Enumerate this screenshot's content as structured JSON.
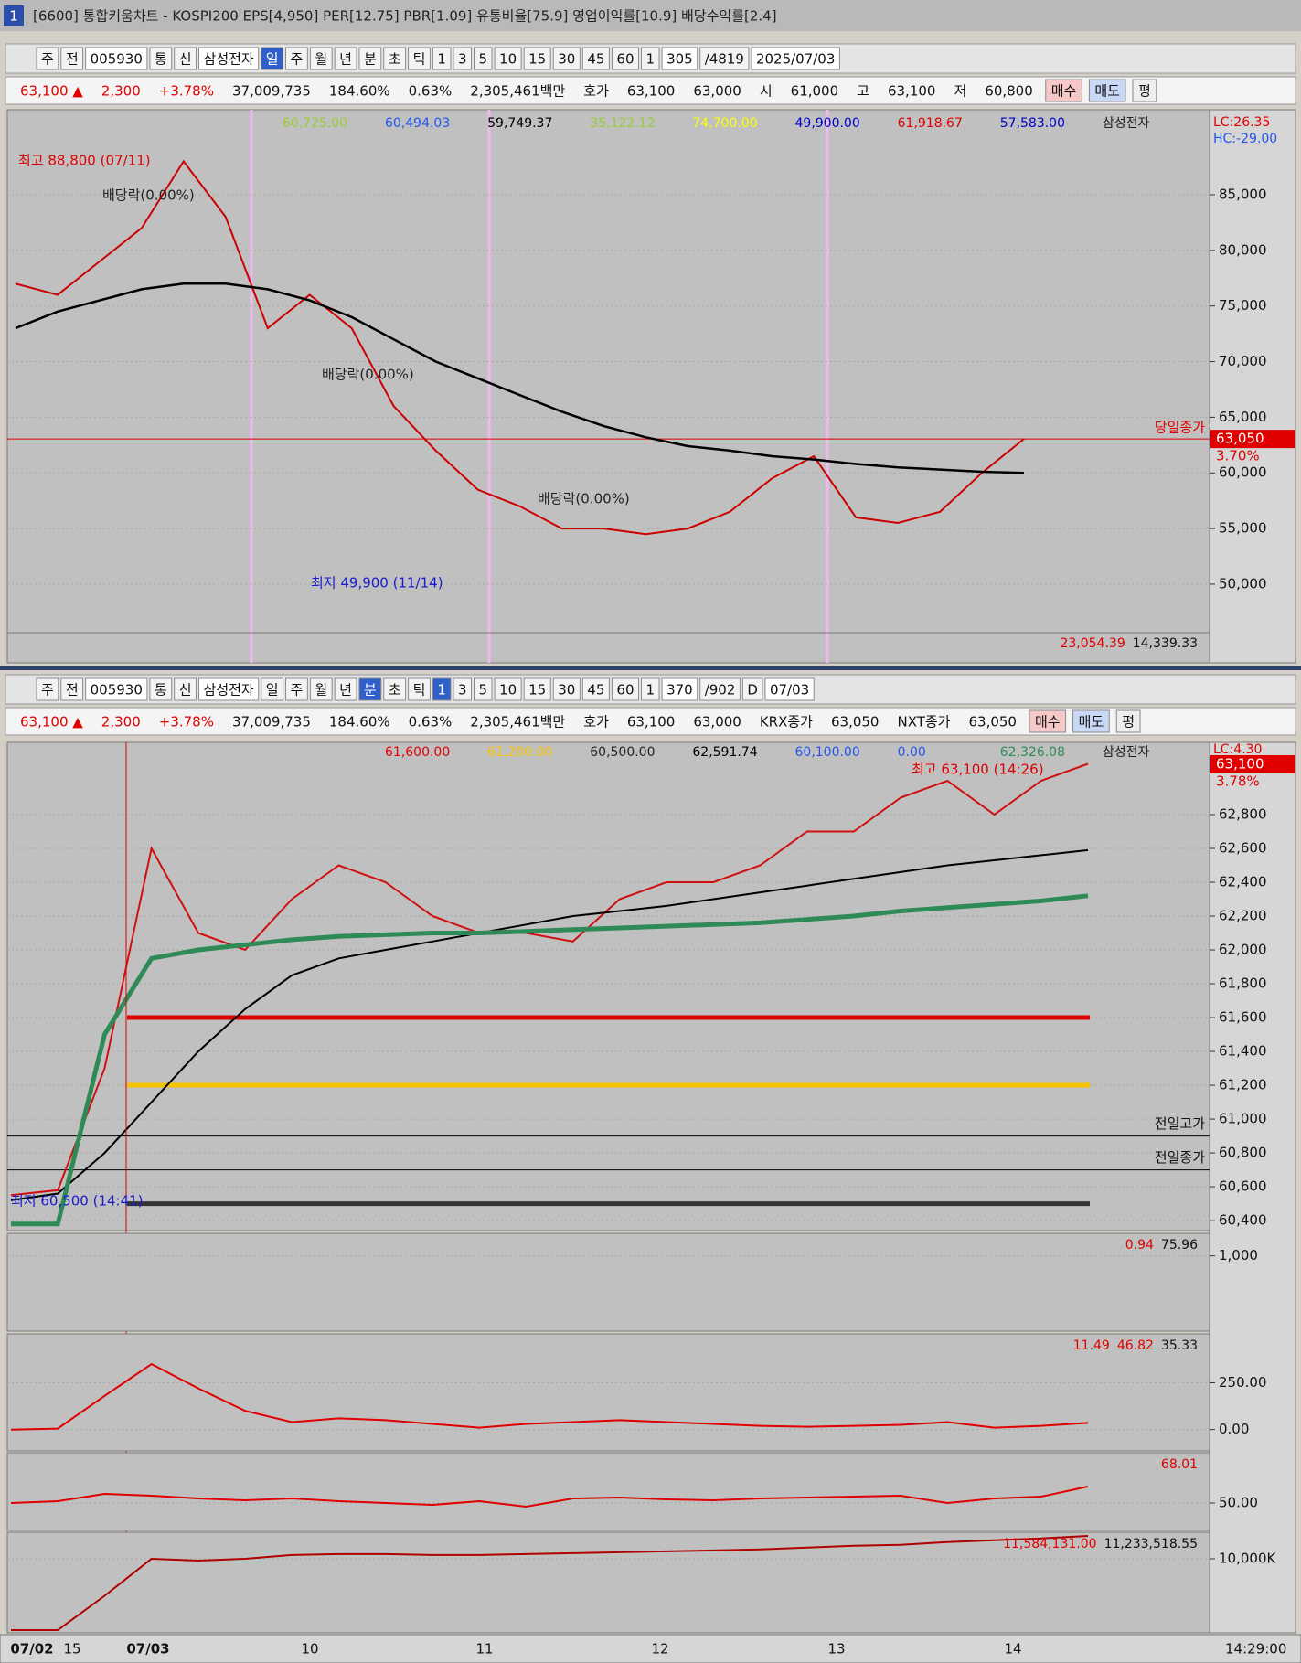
{
  "title_bar": {
    "window_number": "1",
    "title": "[6600] 통합키움차트 - KOSPI200 EPS[4,950] PER[12.75] PBR[1.09] 유통비율[75.9] 영업이익률[10.9] 배당수익률[2.4]"
  },
  "top_window": {
    "toolbar": [
      "주",
      "전",
      "005930",
      "통",
      "신",
      "삼성전자",
      "일",
      "주",
      "월",
      "년",
      "분",
      "초",
      "틱",
      "1",
      "3",
      "5",
      "10",
      "15",
      "30",
      "45",
      "60",
      "1",
      "305",
      "/4819",
      "2025/07/03"
    ],
    "active_buttons": [
      6
    ],
    "info": [
      "63,100 ▲",
      "2,300",
      "+3.78%",
      "37,009,735",
      "184.60%",
      "0.63%",
      "2,305,461백만",
      "호가",
      "63,100",
      "63,000",
      "시",
      "61,000",
      "고",
      "63,100",
      "저",
      "60,800",
      "매수",
      "매도",
      "평"
    ],
    "chart": {
      "legend": [
        {
          "text": "60,725.00",
          "color": "#9acd32"
        },
        {
          "text": "60,494.03",
          "color": "#2255ee"
        },
        {
          "text": "59,749.37",
          "color": "#000000"
        },
        {
          "text": "35,122.12",
          "color": "#9acd32"
        },
        {
          "text": "74,700.00",
          "color": "#ffff00"
        },
        {
          "text": "49,900.00",
          "color": "#0000cc"
        },
        {
          "text": "61,918.67",
          "color": "#e00000"
        },
        {
          "text": "57,583.00",
          "color": "#0000cc"
        },
        {
          "text": "삼성전자",
          "color": "#222222"
        }
      ],
      "scale_info": [
        "LC:26.35",
        "HC:-29.00"
      ],
      "ylim": [
        42930,
        92640
      ],
      "yticks": [
        {
          "value": 50000,
          "label": "50,000"
        },
        {
          "value": 55000,
          "label": "55,000"
        },
        {
          "value": 60000,
          "label": "60,000"
        },
        {
          "value": 65000,
          "label": "65,000"
        },
        {
          "value": 70000,
          "label": "70,000"
        },
        {
          "value": 75000,
          "label": "75,000"
        },
        {
          "value": 80000,
          "label": "80,000"
        },
        {
          "value": 85000,
          "label": "85,000"
        }
      ],
      "series": [
        {
          "color": "#cc0000",
          "values": [
            77000,
            76000,
            79000,
            82000,
            88000,
            83000,
            73000,
            76000,
            73000,
            66000,
            62000,
            58500,
            57000,
            55000,
            55000,
            54500,
            55000,
            56500,
            59500,
            61500,
            56000,
            55500,
            56500,
            60000,
            63050
          ]
        },
        {
          "color": "#000000",
          "values": [
            73000,
            74500,
            75500,
            76500,
            77000,
            77000,
            76500,
            75500,
            74000,
            72000,
            70000,
            68500,
            67000,
            65500,
            64200,
            63200,
            62400,
            62000,
            61500,
            61200,
            60800,
            60500,
            60300,
            60100,
            60000
          ]
        }
      ],
      "level": {
        "value": 63050,
        "color": "#e00000",
        "label": "당일종가",
        "price_label": "63,050",
        "change_label": "3.70%"
      },
      "annotations": [
        "최고 88,800 (07/11)",
        "최저 49,900 (11/14)",
        "배당락(0.00%)",
        "배당락(0.00%)",
        "배당락(0.00%)"
      ],
      "volume_legend": [
        "23,054.39",
        "14,339.33"
      ]
    }
  },
  "bottom_window": {
    "toolbar": [
      "주",
      "전",
      "005930",
      "통",
      "신",
      "삼성전자",
      "일",
      "주",
      "월",
      "년",
      "분",
      "초",
      "틱",
      "1",
      "3",
      "5",
      "10",
      "15",
      "30",
      "45",
      "60",
      "1",
      "370",
      "/902",
      "D",
      "07/03"
    ],
    "active_buttons": [
      10,
      13
    ],
    "info": [
      "63,100 ▲",
      "2,300",
      "+3.78%",
      "37,009,735",
      "184.60%",
      "0.63%",
      "2,305,461백만",
      "호가",
      "63,100",
      "63,000",
      "KRX종가",
      "63,050",
      "NXT종가",
      "63,050",
      "매수",
      "매도",
      "평"
    ],
    "chart": {
      "legend": [
        {
          "text": "61,600.00",
          "color": "#e00000"
        },
        {
          "text": "61,200.00",
          "color": "#f5c400"
        },
        {
          "text": "60,500.00",
          "color": "#222222"
        },
        {
          "text": "62,591.74",
          "color": "#000000"
        },
        {
          "text": "60,100.00",
          "color": "#2255ee"
        },
        {
          "text": "0.00",
          "color": "#2255ee"
        },
        {
          "text": "62,326.08",
          "color": "#2e8b57"
        },
        {
          "text": "삼성전자",
          "color": "#222222"
        }
      ],
      "scale_info": "LC:4.30",
      "ylim": [
        60341,
        63227
      ],
      "yticks": [
        {
          "value": 60400,
          "label": "60,400"
        },
        {
          "value": 60600,
          "label": "60,600"
        },
        {
          "value": 60800,
          "label": "60,800"
        },
        {
          "value": 61000,
          "label": "61,000"
        },
        {
          "value": 61200,
          "label": "61,200"
        },
        {
          "value": 61400,
          "label": "61,400"
        },
        {
          "value": 61600,
          "label": "61,600"
        },
        {
          "value": 61800,
          "label": "61,800"
        },
        {
          "value": 62000,
          "label": "62,000"
        },
        {
          "value": 62200,
          "label": "62,200"
        },
        {
          "value": 62400,
          "label": "62,400"
        },
        {
          "value": 62600,
          "label": "62,600"
        },
        {
          "value": 62800,
          "label": "62,800"
        }
      ],
      "series": [
        {
          "color": "#d01010",
          "values": [
            60550,
            60580,
            61300,
            62600,
            62100,
            62000,
            62300,
            62500,
            62400,
            62200,
            62100,
            62100,
            62050,
            62300,
            62400,
            62400,
            62500,
            62700,
            62700,
            62900,
            63000,
            62800,
            63000,
            63100
          ]
        },
        {
          "color": "#000000",
          "values": [
            60520,
            60560,
            60800,
            61100,
            61400,
            61650,
            61850,
            61950,
            62000,
            62050,
            62100,
            62150,
            62200,
            62230,
            62260,
            62300,
            62340,
            62380,
            62420,
            62460,
            62500,
            62530,
            62560,
            62590
          ]
        },
        {
          "color": "#2e8b57",
          "values": [
            60380,
            60380,
            61500,
            61950,
            62000,
            62030,
            62060,
            62080,
            62090,
            62100,
            62100,
            62110,
            62120,
            62130,
            62140,
            62150,
            62160,
            62180,
            62200,
            62230,
            62250,
            62270,
            62290,
            62320
          ]
        }
      ],
      "levels": [
        {
          "value": 61600,
          "color": "#e00000"
        },
        {
          "value": 61200,
          "color": "#f5c400"
        },
        {
          "value": 60500,
          "color": "#333333"
        },
        {
          "value": 60900,
          "color": "#000000",
          "label": "전일고가"
        },
        {
          "value": 60700,
          "color": "#000000",
          "label": "전일종가"
        }
      ],
      "price_label": "63,100",
      "change_label": "3.78%",
      "annotations": [
        "최고 63,100 (14:26)",
        "최저 60,500 (14:41)"
      ],
      "panes": [
        {
          "legend": [
            "0.94",
            "75.96"
          ],
          "ylim": [
            0,
            1300
          ],
          "yticks": [
            {
              "value": 1000,
              "label": "1,000"
            }
          ]
        },
        {
          "legend": [
            "11.49",
            "46.82",
            "35.33"
          ],
          "ylim": [
            -114,
            511
          ],
          "yticks": [
            {
              "value": 0,
              "label": "0.00"
            },
            {
              "value": 250,
              "label": "250.00"
            }
          ],
          "series": {
            "color": "#e00000",
            "values": [
              0,
              5,
              180,
              350,
              220,
              100,
              40,
              60,
              50,
              30,
              10,
              30,
              40,
              50,
              40,
              30,
              20,
              15,
              20,
              25,
              40,
              10,
              20,
              35.33
            ]
          }
        },
        {
          "legend": [
            "68.01"
          ],
          "ylim": [
            20,
            105
          ],
          "yticks": [
            {
              "value": 50,
              "label": "50.00"
            }
          ],
          "series": {
            "color": "#e00000",
            "values": [
              50,
              52,
              60,
              58,
              55,
              53,
              55,
              52,
              50,
              48,
              52,
              46,
              55,
              56,
              54,
              53,
              55,
              56,
              57,
              58,
              50,
              55,
              57,
              68.01
            ]
          }
        },
        {
          "legend": [
            "11,584,131.00",
            "11,233,518.55"
          ],
          "ylim": [
            6000000,
            11430000
          ],
          "yticks": [
            {
              "value": 10000000,
              "label": "10,000K"
            }
          ],
          "series": {
            "color": "#b00000",
            "values": [
              6150000,
              6150000,
              8000000,
              10000000,
              9900000,
              10000000,
              10200000,
              10250000,
              10250000,
              10200000,
              10200000,
              10250000,
              10300000,
              10350000,
              10400000,
              10450000,
              10500000,
              10600000,
              10700000,
              10750000,
              10900000,
              11000000,
              11100000,
              11233518.55
            ]
          }
        }
      ],
      "time_axis": [
        "07/02",
        "15",
        "07/03",
        "10",
        "11",
        "12",
        "13",
        "14",
        "14:29:00"
      ]
    }
  }
}
